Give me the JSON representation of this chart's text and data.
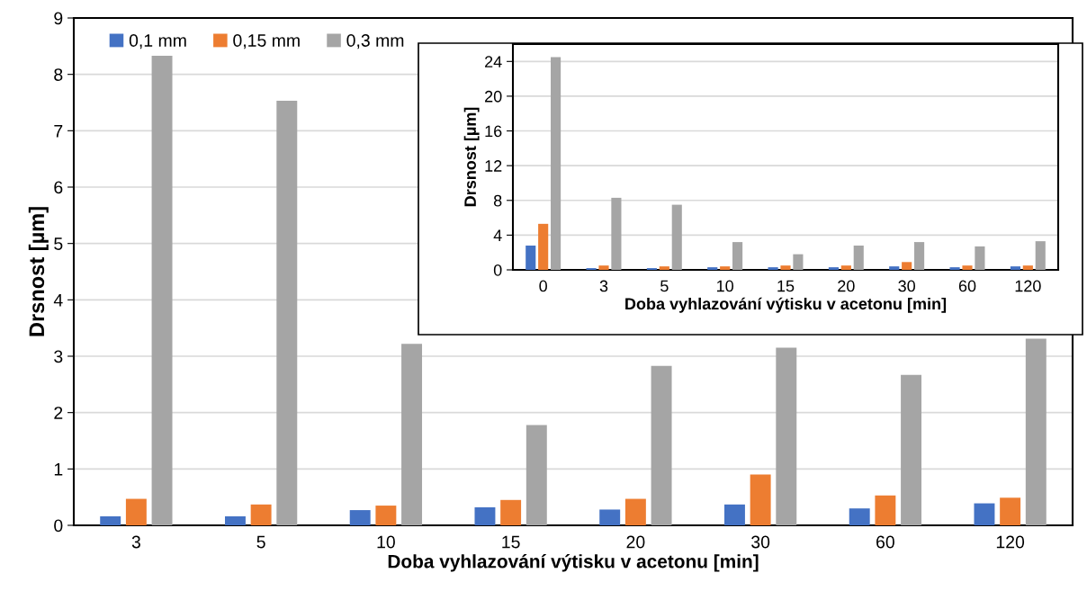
{
  "chart_data": [
    {
      "type": "bar",
      "xlabel": "Doba vyhlazování výtisku v acetonu [min]",
      "ylabel": "Drsnost [µm]",
      "categories": [
        "3",
        "5",
        "10",
        "15",
        "20",
        "30",
        "60",
        "120"
      ],
      "series": [
        {
          "name": "0,1 mm",
          "color": "#4472c4",
          "values": [
            0.16,
            0.16,
            0.27,
            0.32,
            0.28,
            0.37,
            0.3,
            0.39
          ]
        },
        {
          "name": "0,15 mm",
          "color": "#ed7d31",
          "values": [
            0.47,
            0.37,
            0.35,
            0.45,
            0.47,
            0.9,
            0.53,
            0.49
          ]
        },
        {
          "name": "0,3 mm",
          "color": "#a5a5a5",
          "values": [
            8.33,
            7.53,
            3.22,
            1.78,
            2.83,
            3.15,
            2.67,
            3.31
          ]
        }
      ],
      "ylim": [
        0,
        9
      ],
      "yticks": [
        0,
        1,
        2,
        3,
        4,
        5,
        6,
        7,
        8,
        9
      ],
      "grid": "y",
      "legend": "top left"
    },
    {
      "type": "bar",
      "xlabel": "Doba vyhlazování výtisku v acetonu [min]",
      "ylabel": "Drsnost [µm]",
      "categories": [
        "0",
        "3",
        "5",
        "10",
        "15",
        "20",
        "30",
        "60",
        "120"
      ],
      "series": [
        {
          "color": "#4472c4",
          "values": [
            2.8,
            0.2,
            0.2,
            0.3,
            0.3,
            0.3,
            0.4,
            0.3,
            0.4
          ]
        },
        {
          "color": "#ed7d31",
          "values": [
            5.3,
            0.5,
            0.4,
            0.4,
            0.5,
            0.5,
            0.9,
            0.5,
            0.5
          ]
        },
        {
          "color": "#a5a5a5",
          "values": [
            24.5,
            8.3,
            7.5,
            3.2,
            1.8,
            2.8,
            3.2,
            2.7,
            3.3
          ]
        }
      ],
      "ylim": [
        0,
        26
      ],
      "yticks": [
        0,
        4,
        8,
        12,
        16,
        20,
        24
      ],
      "grid": "y"
    }
  ]
}
